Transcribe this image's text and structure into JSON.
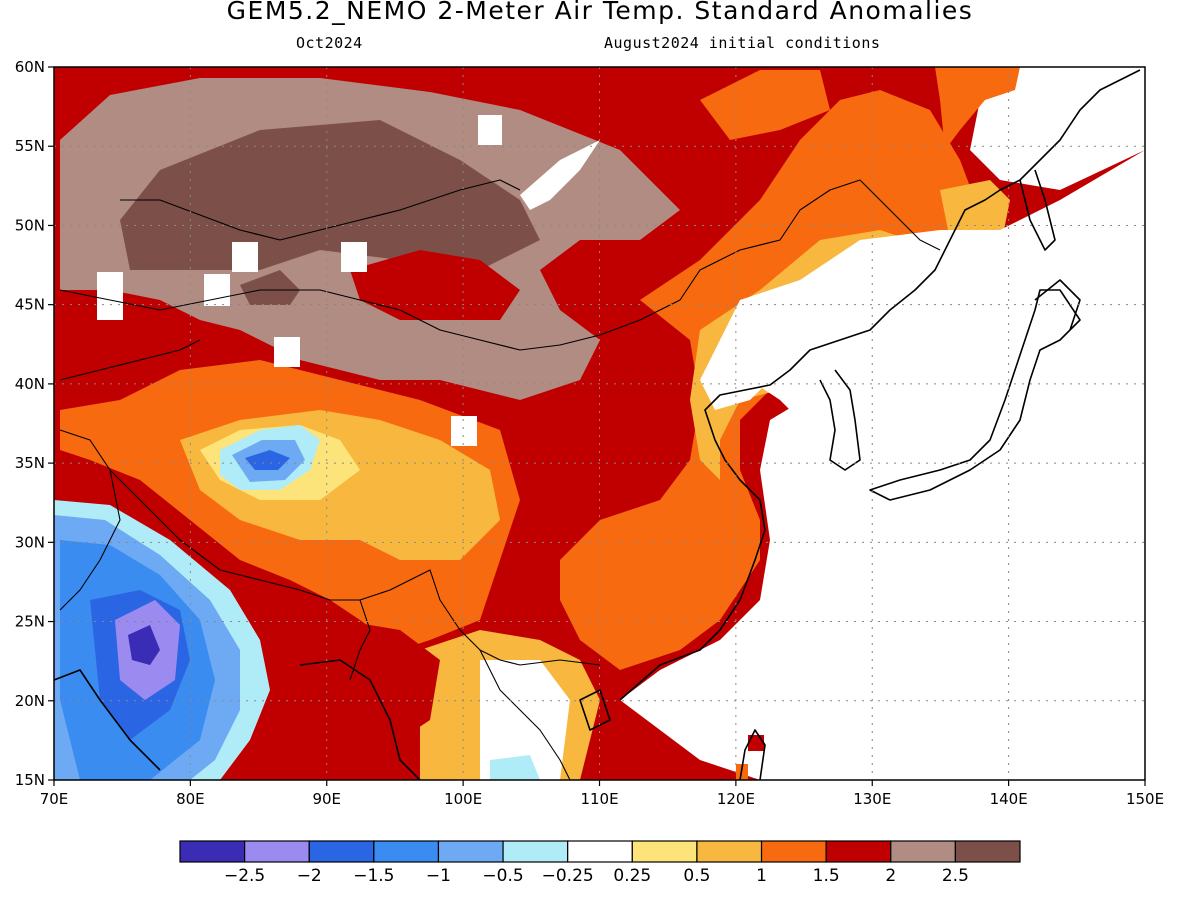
{
  "title": "GEM5.2_NEMO 2-Meter Air Temp. Standard Anomalies",
  "subtitle_left": "Oct2024",
  "subtitle_right": "August2024 initial conditions",
  "map": {
    "lon_range": [
      70,
      150
    ],
    "lat_range": [
      15,
      60
    ],
    "lon_ticks": [
      "70E",
      "80E",
      "90E",
      "100E",
      "110E",
      "120E",
      "130E",
      "140E",
      "150E"
    ],
    "lat_ticks": [
      "15N",
      "20N",
      "25N",
      "30N",
      "35N",
      "40N",
      "45N",
      "50N",
      "55N",
      "60N"
    ],
    "grid": "dotted"
  },
  "colorbar": {
    "colors": [
      "#3a2cb4",
      "#9b8bf0",
      "#2a66e4",
      "#3a8cf0",
      "#6eaaf4",
      "#b0ecf8",
      "#ffffff",
      "#fce47a",
      "#f8b840",
      "#f86a10",
      "#c00000",
      "#b08c82",
      "#7c5048"
    ],
    "labels": [
      "-2.5",
      "-2",
      "-1.5",
      "-1",
      "-0.5",
      "-0.25",
      "0.25",
      "0.5",
      "1",
      "1.5",
      "2",
      "2.5"
    ]
  },
  "regions": [
    {
      "name": "mongolia-positive-anomaly-brown",
      "color": "#7c5048"
    },
    {
      "name": "india-negative-anomaly-blue",
      "color": "#3a8cf0"
    },
    {
      "name": "tibet-negative-anomaly-blue",
      "color": "#3a8cf0"
    },
    {
      "name": "east-china-positive-anomaly-orange",
      "color": "#f86a10"
    }
  ]
}
